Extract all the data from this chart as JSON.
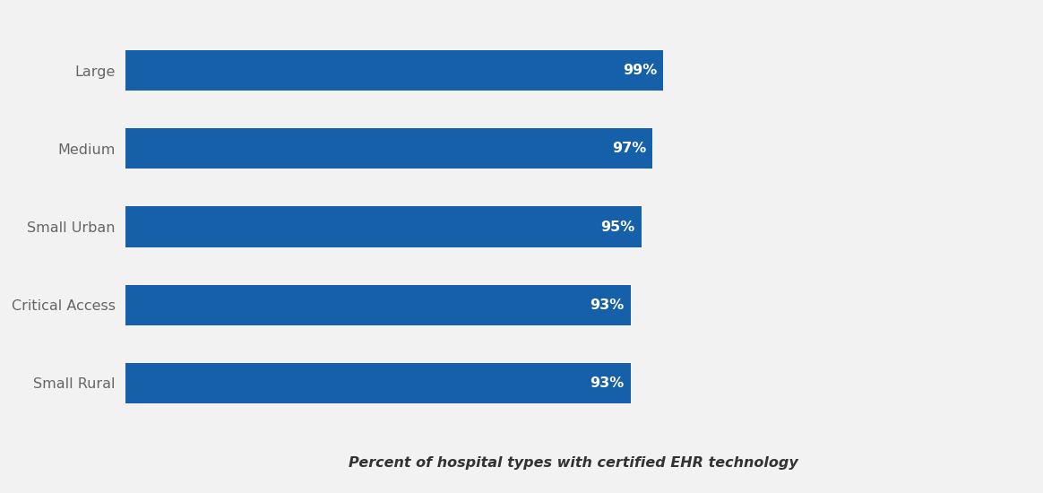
{
  "categories": [
    "Small Rural",
    "Critical Access",
    "Small Urban",
    "Medium",
    "Large"
  ],
  "values": [
    93,
    93,
    95,
    97,
    99
  ],
  "bar_color": "#1560A8",
  "background_color": "#F2F2F2",
  "label_color": "#666666",
  "value_labels": [
    "93%",
    "93%",
    "95%",
    "97%",
    "99%"
  ],
  "xlabel": "Percent of hospital types with certified EHR technology",
  "xlabel_fontsize": 11.5,
  "label_fontsize": 11.5,
  "value_fontsize": 11.5,
  "bar_height": 0.52,
  "xlim": [
    0,
    165
  ]
}
